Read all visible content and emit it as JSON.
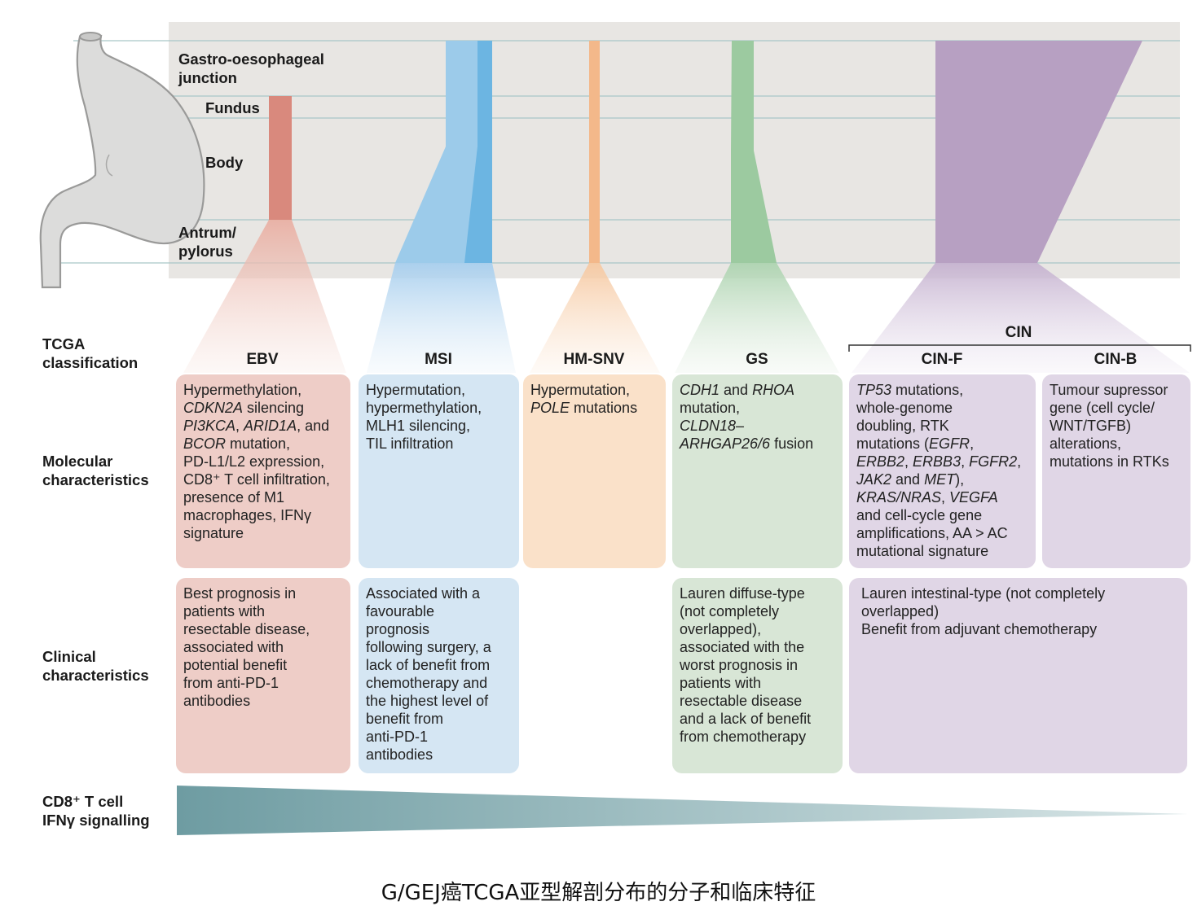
{
  "regions": {
    "gej": [
      "Gastro-oesophageal",
      "junction"
    ],
    "fundus": [
      "Fundus"
    ],
    "body": [
      "Body"
    ],
    "antrum": [
      "Antrum/",
      "pylorus"
    ]
  },
  "row_labels": {
    "tcga": [
      "TCGA",
      "classification"
    ],
    "molecular": [
      "Molecular",
      "characteristics"
    ],
    "clinical": [
      "Clinical",
      "characteristics"
    ],
    "cd8": [
      "CD8⁺ T cell",
      "IFNγ signalling"
    ]
  },
  "subtypes": {
    "cin_group": "CIN",
    "ebv": "EBV",
    "msi": "MSI",
    "hmsnv": "HM-SNV",
    "gs": "GS",
    "cinf": "CIN-F",
    "cinb": "CIN-B"
  },
  "molecular": {
    "ebv": [
      [
        [
          "Hypermethylation,",
          false
        ]
      ],
      [
        [
          "CDKN2A",
          true
        ],
        [
          " silencing",
          false
        ]
      ],
      [
        [
          "PI3KCA",
          true
        ],
        [
          ", ",
          false
        ],
        [
          "ARID1A",
          true
        ],
        [
          ", and",
          false
        ]
      ],
      [
        [
          "BCOR",
          true
        ],
        [
          " mutation,",
          false
        ]
      ],
      [
        [
          "PD-L1/L2 expression,",
          false
        ]
      ],
      [
        [
          "CD8⁺ T cell infiltration,",
          false
        ]
      ],
      [
        [
          "presence of M1",
          false
        ]
      ],
      [
        [
          "macrophages, IFNγ",
          false
        ]
      ],
      [
        [
          "signature",
          false
        ]
      ]
    ],
    "msi": [
      [
        [
          "Hypermutation,",
          false
        ]
      ],
      [
        [
          "hypermethylation,",
          false
        ]
      ],
      [
        [
          "MLH1 silencing,",
          false
        ]
      ],
      [
        [
          "TIL infiltration",
          false
        ]
      ]
    ],
    "hmsnv": [
      [
        [
          "Hypermutation,",
          false
        ]
      ],
      [
        [
          "POLE",
          true
        ],
        [
          " mutations",
          false
        ]
      ]
    ],
    "gs": [
      [
        [
          "CDH1",
          true
        ],
        [
          " and ",
          false
        ],
        [
          "RHOA",
          true
        ]
      ],
      [
        [
          "mutation,",
          false
        ]
      ],
      [
        [
          "CLDN18–",
          true
        ]
      ],
      [
        [
          "ARHGAP26/6",
          true
        ],
        [
          " fusion",
          false
        ]
      ]
    ],
    "cinf": [
      [
        [
          "TP53",
          true
        ],
        [
          " mutations,",
          false
        ]
      ],
      [
        [
          "whole-genome",
          false
        ]
      ],
      [
        [
          "doubling, RTK",
          false
        ]
      ],
      [
        [
          "mutations (",
          false
        ],
        [
          "EGFR",
          true
        ],
        [
          ",",
          false
        ]
      ],
      [
        [
          "ERBB2",
          true
        ],
        [
          ", ",
          false
        ],
        [
          "ERBB3",
          true
        ],
        [
          ", ",
          false
        ],
        [
          "FGFR2",
          true
        ],
        [
          ",",
          false
        ]
      ],
      [
        [
          "JAK2",
          true
        ],
        [
          " and ",
          false
        ],
        [
          "MET",
          true
        ],
        [
          "),",
          false
        ]
      ],
      [
        [
          "KRAS/NRAS",
          true
        ],
        [
          ", ",
          false
        ],
        [
          "VEGFA",
          true
        ]
      ],
      [
        [
          "and cell-cycle gene",
          false
        ]
      ],
      [
        [
          "amplifications, AA > AC",
          false
        ]
      ],
      [
        [
          "mutational signature",
          false
        ]
      ]
    ],
    "cinb": [
      [
        [
          "Tumour supressor",
          false
        ]
      ],
      [
        [
          "gene (cell cycle/",
          false
        ]
      ],
      [
        [
          "WNT/TGFB)",
          false
        ]
      ],
      [
        [
          "alterations,",
          false
        ]
      ],
      [
        [
          "mutations in RTKs",
          false
        ]
      ]
    ]
  },
  "clinical": {
    "ebv": [
      "Best prognosis in",
      "patients with",
      "resectable disease,",
      "associated with",
      "potential benefit",
      "from anti-PD-1",
      "antibodies"
    ],
    "msi": [
      "Associated with a",
      "favourable",
      "prognosis",
      "following surgery, a",
      "lack of benefit from",
      "chemotherapy and",
      "the highest level of",
      "benefit from",
      "anti-PD-1",
      "antibodies"
    ],
    "gs": [
      "Lauren diffuse-type",
      "(not completely",
      "overlapped),",
      "associated with the",
      "worst prognosis in",
      "patients with",
      "resectable disease",
      "and a lack of benefit",
      "from chemotherapy"
    ],
    "cin": [
      "Lauren intestinal-type (not completely",
      "overlapped)",
      "Benefit from adjuvant chemotherapy"
    ]
  },
  "caption": "G/GEJ癌TCGA亚型解剖分布的分子和临床特征",
  "colors": {
    "panel_bg": "#e8e6e3",
    "ebv": "#d9897d",
    "msi_light": "#9ccbea",
    "msi_dark": "#6cb5e2",
    "hmsnv": "#f3b88a",
    "gs": "#9ccaa0",
    "cin": "#b7a0c2",
    "gradient": "#6e9ca2"
  }
}
